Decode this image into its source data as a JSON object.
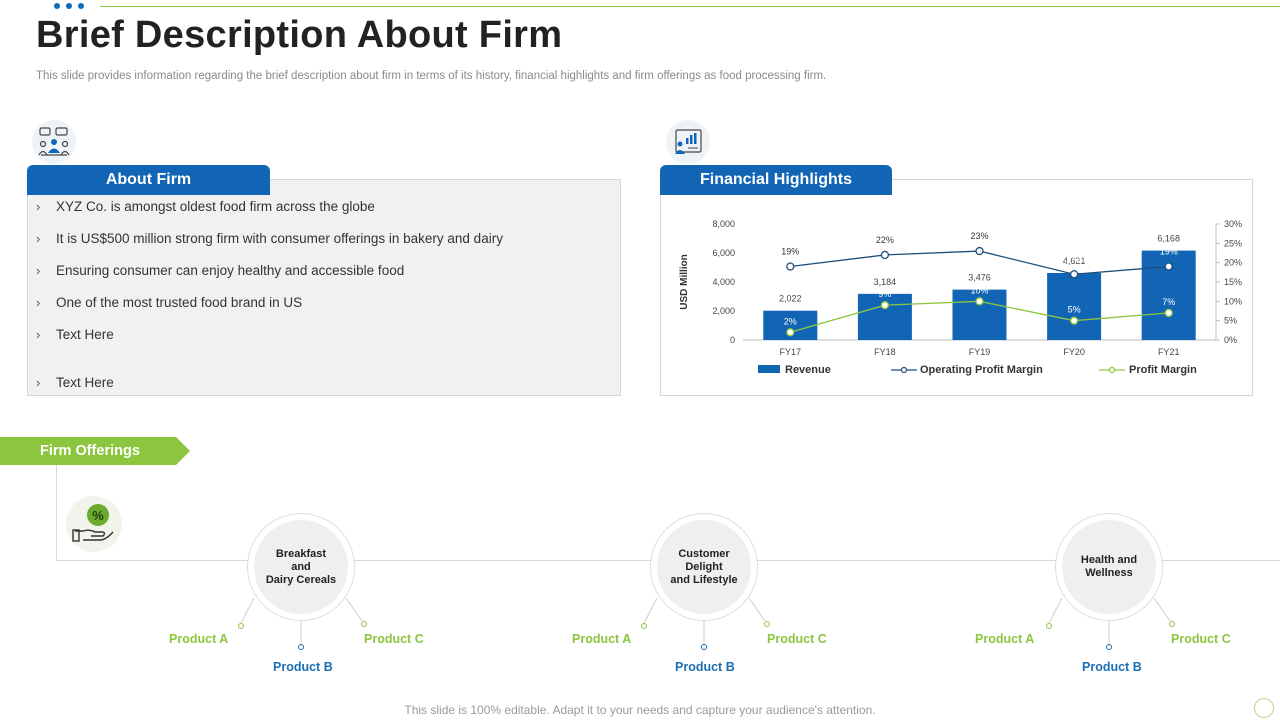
{
  "header": {
    "title": "Brief Description About Firm",
    "subtitle": "This slide provides information regarding the brief description about firm in terms of its history, financial highlights and firm offerings as food processing firm."
  },
  "about_firm": {
    "title": "About Firm",
    "icon": "meeting-icon",
    "items": [
      "XYZ Co. is amongst oldest food firm across the globe",
      "It is US$500  million strong firm with consumer offerings  in bakery and dairy",
      "Ensuring consumer can enjoy healthy and accessible food",
      "One of the most trusted food brand  in US",
      "Text Here",
      "Text Here"
    ]
  },
  "financial_highlights": {
    "title": "Financial Highlights",
    "icon": "financial-report-icon"
  },
  "chart_data": {
    "type": "bar",
    "categories": [
      "FY17",
      "FY18",
      "FY19",
      "FY20",
      "FY21"
    ],
    "ylabel": "USD Million",
    "ylim": [
      0,
      8000
    ],
    "y_ticks": [
      "0",
      "2,000",
      "4,000",
      "6,000",
      "8,000"
    ],
    "y2lim": [
      0,
      30
    ],
    "y2_ticks": [
      "0%",
      "5%",
      "10%",
      "15%",
      "20%",
      "25%",
      "30%"
    ],
    "series": [
      {
        "name": "Revenue",
        "kind": "bar",
        "color": "#1265b5",
        "values": [
          2022,
          3184,
          3476,
          4621,
          6168
        ],
        "labels": [
          "2,022",
          "3,184",
          "3,476",
          "4,621",
          "6,168"
        ]
      },
      {
        "name": "Operating Profit Margin",
        "kind": "line",
        "axis": "right",
        "color": "#1f4e79",
        "values": [
          19,
          22,
          23,
          17,
          19
        ],
        "labels": [
          "19%",
          "22%",
          "23%",
          "17%",
          "19%"
        ]
      },
      {
        "name": "Profit Margin",
        "kind": "line",
        "axis": "right",
        "color": "#8cc63f",
        "values": [
          2,
          9,
          10,
          5,
          7
        ],
        "labels": [
          "2%",
          "9%",
          "10%",
          "5%",
          "7%"
        ]
      }
    ],
    "legend": "bottom"
  },
  "firm_offerings": {
    "title": "Firm Offerings",
    "icon": "discount-hand-icon",
    "categories": [
      {
        "name": "Breakfast\nand\nDairy Cereals",
        "products": [
          "Product A",
          "Product B",
          "Product C"
        ]
      },
      {
        "name": "Customer\nDelight\nand Lifestyle",
        "products": [
          "Product A",
          "Product B",
          "Product C"
        ]
      },
      {
        "name": "Health and\nWellness",
        "products": [
          "Product A",
          "Product B",
          "Product C"
        ]
      }
    ]
  },
  "footer": {
    "text": "This slide is 100% editable. Adapt it to your needs and capture your audience's attention."
  },
  "colors": {
    "primary_blue": "#1265b5",
    "accent_green": "#8cc63f"
  }
}
